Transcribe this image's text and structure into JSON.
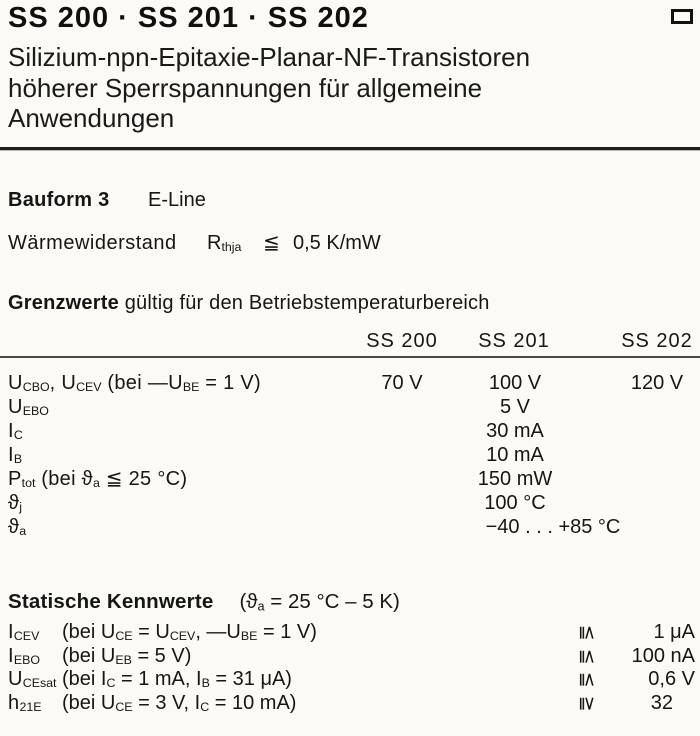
{
  "header": {
    "title": "SS 200 · SS 201 · SS 202",
    "corner_icon": "rectangle-outline-icon",
    "subtitle_lines": [
      "Silizium-npn-Epitaxie-Planar-NF-Transistoren",
      "höherer Sperrspannungen für allgemeine",
      "Anwendungen"
    ]
  },
  "bauform": {
    "label": "Bauform 3",
    "value": "E-Line"
  },
  "thermal": {
    "label": "Wärmewiderstand",
    "symbol": [
      {
        "t": "R"
      },
      {
        "t": "thja",
        "sub": true
      }
    ],
    "operator": "≦",
    "value": "0,5 K/mW"
  },
  "limits": {
    "heading_bold": "Grenzwerte",
    "heading_rest": " gültig für den Betriebstemperaturbereich",
    "columns": [
      "SS 200",
      "SS 201",
      "SS 202"
    ],
    "rows": [
      {
        "label": [
          {
            "t": "U"
          },
          {
            "t": "CBO",
            "sub": true
          },
          {
            "t": ", U"
          },
          {
            "t": "CEV",
            "sub": true
          },
          {
            "t": " (bei —U"
          },
          {
            "t": "BE",
            "sub": true
          },
          {
            "t": " = 1 V)"
          }
        ],
        "values": {
          "ss200": "70 V",
          "ss201": "100 V",
          "ss202": "120 V"
        }
      },
      {
        "label": [
          {
            "t": "U"
          },
          {
            "t": "EBO",
            "sub": true
          }
        ],
        "values": {
          "ss201": "5 V"
        }
      },
      {
        "label": [
          {
            "t": "I"
          },
          {
            "t": "C",
            "sub": true
          }
        ],
        "values": {
          "ss201": "30 mA"
        }
      },
      {
        "label": [
          {
            "t": "I"
          },
          {
            "t": "B",
            "sub": true
          }
        ],
        "values": {
          "ss201": "10 mA"
        }
      },
      {
        "label": [
          {
            "t": "P"
          },
          {
            "t": "tot",
            "sub": true
          },
          {
            "t": " (bei ϑ"
          },
          {
            "t": "a",
            "sub": true
          },
          {
            "t": " ≦ 25 °C)"
          }
        ],
        "values": {
          "ss201": "150 mW"
        }
      },
      {
        "label": [
          {
            "t": "ϑ"
          },
          {
            "t": "j",
            "sub": true
          }
        ],
        "values": {
          "ss201": "100 °C"
        }
      },
      {
        "label": [
          {
            "t": "ϑ"
          },
          {
            "t": "a",
            "sub": true
          }
        ],
        "values": {
          "ss201": "−40 . . . +85 °C"
        }
      }
    ]
  },
  "static_chars": {
    "heading_bold": "Statische Kennwerte",
    "heading_condition": [
      {
        "t": "(ϑ"
      },
      {
        "t": "a",
        "sub": true
      },
      {
        "t": " = 25 °C – 5 K)"
      }
    ],
    "rows": [
      {
        "symbol": [
          {
            "t": "I"
          },
          {
            "t": "CEV",
            "sub": true
          }
        ],
        "condition": [
          {
            "t": "(bei U"
          },
          {
            "t": "CE",
            "sub": true
          },
          {
            "t": " = U"
          },
          {
            "t": "CEV",
            "sub": true
          },
          {
            "t": ", —U"
          },
          {
            "t": "BE",
            "sub": true
          },
          {
            "t": " = 1 V)"
          }
        ],
        "operator": "≦",
        "value": "1 μA"
      },
      {
        "symbol": [
          {
            "t": "I"
          },
          {
            "t": "EBO",
            "sub": true
          }
        ],
        "condition": [
          {
            "t": "(bei U"
          },
          {
            "t": "EB",
            "sub": true
          },
          {
            "t": " = 5 V)"
          }
        ],
        "operator": "≦",
        "value": "100 nA"
      },
      {
        "symbol": [
          {
            "t": "U"
          },
          {
            "t": "CEsat",
            "sub": true
          }
        ],
        "condition": [
          {
            "t": "(bei I"
          },
          {
            "t": "C",
            "sub": true
          },
          {
            "t": "  = 1 mA, I"
          },
          {
            "t": "B",
            "sub": true
          },
          {
            "t": " = 31 μA)"
          }
        ],
        "operator": "≦",
        "value": "0,6 V"
      },
      {
        "symbol": [
          {
            "t": "h"
          },
          {
            "t": "21E",
            "sub": true
          }
        ],
        "condition": [
          {
            "t": "(bei U"
          },
          {
            "t": "CE",
            "sub": true
          },
          {
            "t": " = 3 V,  I"
          },
          {
            "t": "C",
            "sub": true
          },
          {
            "t": " = 10 mA)"
          }
        ],
        "operator": "≧",
        "value": "32"
      }
    ]
  }
}
